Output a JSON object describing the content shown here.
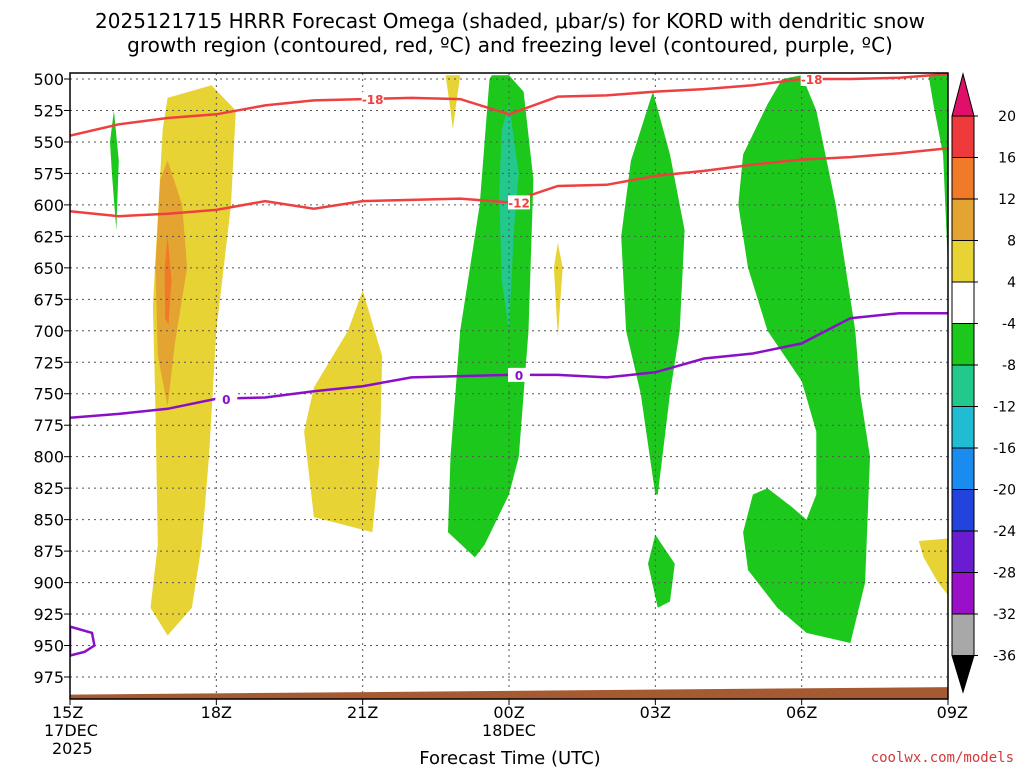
{
  "chart_data": {
    "type": "heatmap",
    "title_line1": "2025121715 HRRR Forecast Omega (shaded, μbar/s) for KORD with dendritic snow",
    "title_line2": "growth region (contoured, red, ºC) and freezing level (contoured, purple, ºC)",
    "xlabel": "Forecast Time (UTC)",
    "credit": "coolwx.com/models",
    "x_range_hours": [
      0,
      18
    ],
    "x_ticks": [
      {
        "hour": 0,
        "label": "15Z",
        "sub1": "17DEC",
        "sub2": "2025"
      },
      {
        "hour": 3,
        "label": "18Z",
        "sub1": "",
        "sub2": ""
      },
      {
        "hour": 6,
        "label": "21Z",
        "sub1": "",
        "sub2": ""
      },
      {
        "hour": 9,
        "label": "00Z",
        "sub1": "18DEC",
        "sub2": ""
      },
      {
        "hour": 12,
        "label": "03Z",
        "sub1": "",
        "sub2": ""
      },
      {
        "hour": 15,
        "label": "06Z",
        "sub1": "",
        "sub2": ""
      },
      {
        "hour": 18,
        "label": "09Z",
        "sub1": "",
        "sub2": ""
      }
    ],
    "y_levels_mb": [
      "500",
      "525",
      "550",
      "575",
      "600",
      "625",
      "650",
      "675",
      "700",
      "725",
      "750",
      "775",
      "800",
      "825",
      "850",
      "875",
      "900",
      "925",
      "950",
      "975"
    ],
    "colorbar": {
      "labels": [
        "20",
        "16",
        "12",
        "8",
        "4",
        "-4",
        "-8",
        "-12",
        "-16",
        "-20",
        "-24",
        "-28",
        "-32",
        "-36"
      ],
      "colors": [
        "#e0106a",
        "#ee3a3a",
        "#f07a28",
        "#e4a432",
        "#e8d334",
        "#ffffff",
        "#1cc81c",
        "#22c88c",
        "#20bcd2",
        "#1a8cf0",
        "#2244dc",
        "#6a1cd2",
        "#9a10c8",
        "#a8a8a8",
        "#000000"
      ]
    },
    "series": [
      {
        "name": "-18C isotherm (red)",
        "label": "-18",
        "color": "#ee4040",
        "x": [
          0,
          1,
          2,
          3,
          4,
          5,
          6,
          7,
          8,
          9,
          10,
          11,
          12,
          13,
          14,
          15,
          16,
          17,
          18
        ],
        "y": [
          545,
          536,
          531,
          528,
          521,
          517,
          516,
          515,
          516,
          528,
          514,
          513,
          510,
          508,
          505,
          500,
          500,
          499,
          496
        ]
      },
      {
        "name": "-12C isotherm (red)",
        "label": "-12",
        "color": "#ee4040",
        "x": [
          0,
          1,
          2,
          3,
          4,
          5,
          6,
          7,
          8,
          9,
          10,
          11,
          12,
          13,
          14,
          15,
          16,
          17,
          18
        ],
        "y": [
          605,
          609,
          607,
          604,
          597,
          603,
          597,
          596,
          595,
          598,
          585,
          584,
          577,
          573,
          568,
          564,
          562,
          559,
          555
        ]
      },
      {
        "name": "0C freezing level (purple)",
        "label": "0",
        "color": "#8a10c8",
        "x": [
          0,
          1,
          2,
          3,
          4,
          5,
          6,
          7,
          8,
          9,
          10,
          11,
          12,
          13,
          14,
          15,
          16,
          17,
          18
        ],
        "y": [
          769,
          766,
          762,
          754,
          753,
          748,
          744,
          737,
          736,
          735,
          735,
          737,
          733,
          722,
          718,
          710,
          690,
          686,
          686
        ]
      }
    ],
    "shaded_regions": [
      {
        "name": "omega +4",
        "color": "#e8d334",
        "pts": [
          [
            2.0,
            515
          ],
          [
            2.9,
            505
          ],
          [
            3.4,
            525
          ],
          [
            3.3,
            600
          ],
          [
            3.0,
            700
          ],
          [
            2.85,
            800
          ],
          [
            2.7,
            870
          ],
          [
            2.5,
            920
          ],
          [
            2.0,
            942
          ],
          [
            1.65,
            920
          ],
          [
            1.8,
            870
          ],
          [
            1.75,
            760
          ],
          [
            1.7,
            680
          ],
          [
            1.9,
            540
          ]
        ]
      },
      {
        "name": "omega +8",
        "color": "#e4a432",
        "pts": [
          [
            2.0,
            565
          ],
          [
            2.3,
            600
          ],
          [
            2.4,
            650
          ],
          [
            2.15,
            710
          ],
          [
            2.0,
            760
          ],
          [
            1.8,
            720
          ],
          [
            1.75,
            650
          ],
          [
            1.85,
            580
          ]
        ]
      },
      {
        "name": "omega +12",
        "color": "#f07a28",
        "pts": [
          [
            2.0,
            625
          ],
          [
            2.08,
            660
          ],
          [
            2.02,
            695
          ],
          [
            1.95,
            690
          ],
          [
            1.94,
            650
          ]
        ]
      },
      {
        "name": "omega +4",
        "color": "#e8d334",
        "pts": [
          [
            6.0,
            668
          ],
          [
            6.4,
            720
          ],
          [
            6.35,
            800
          ],
          [
            6.2,
            860
          ],
          [
            5.7,
            855
          ],
          [
            5.0,
            848
          ],
          [
            4.8,
            780
          ],
          [
            5.0,
            745
          ],
          [
            5.7,
            700
          ]
        ]
      },
      {
        "name": "omega +4",
        "color": "#e8d334",
        "pts": [
          [
            7.7,
            497
          ],
          [
            8.0,
            497
          ],
          [
            7.9,
            525
          ],
          [
            7.85,
            540
          ],
          [
            7.8,
            525
          ]
        ]
      },
      {
        "name": "omega +4",
        "color": "#e8d334",
        "pts": [
          [
            10.0,
            630
          ],
          [
            10.1,
            650
          ],
          [
            10.0,
            705
          ],
          [
            9.92,
            650
          ]
        ]
      },
      {
        "name": "omega +4",
        "color": "#e8d334",
        "pts": [
          [
            17.4,
            867
          ],
          [
            18.0,
            865
          ],
          [
            18.0,
            910
          ],
          [
            17.8,
            900
          ],
          [
            17.5,
            880
          ]
        ]
      },
      {
        "name": "omega -4",
        "color": "#1cc81c",
        "pts": [
          [
            9.0,
            497
          ],
          [
            9.3,
            510
          ],
          [
            9.5,
            580
          ],
          [
            9.4,
            700
          ],
          [
            9.2,
            800
          ],
          [
            9.0,
            830
          ],
          [
            8.5,
            870
          ],
          [
            8.3,
            880
          ],
          [
            7.75,
            860
          ],
          [
            7.8,
            800
          ],
          [
            8.0,
            700
          ],
          [
            8.4,
            600
          ],
          [
            8.6,
            500
          ],
          [
            8.65,
            497
          ]
        ]
      },
      {
        "name": "omega -8",
        "color": "#22c88c",
        "pts": [
          [
            9.0,
            520
          ],
          [
            9.2,
            575
          ],
          [
            9.1,
            620
          ],
          [
            9.0,
            700
          ],
          [
            8.85,
            660
          ],
          [
            8.8,
            590
          ],
          [
            8.85,
            540
          ]
        ]
      },
      {
        "name": "omega -4",
        "color": "#1cc81c",
        "pts": [
          [
            11.95,
            510
          ],
          [
            12.3,
            560
          ],
          [
            12.6,
            620
          ],
          [
            12.5,
            700
          ],
          [
            12.3,
            750
          ],
          [
            12.05,
            830
          ],
          [
            12.0,
            830
          ],
          [
            11.7,
            750
          ],
          [
            11.4,
            700
          ],
          [
            11.3,
            625
          ],
          [
            11.5,
            565
          ]
        ]
      },
      {
        "name": "omega -4",
        "color": "#1cc81c",
        "pts": [
          [
            12.0,
            862
          ],
          [
            12.4,
            885
          ],
          [
            12.3,
            915
          ],
          [
            12.05,
            920
          ],
          [
            11.85,
            885
          ]
        ]
      },
      {
        "name": "omega -4",
        "color": "#1cc81c",
        "pts": [
          [
            15.0,
            497
          ],
          [
            15.3,
            525
          ],
          [
            15.7,
            600
          ],
          [
            15.9,
            650
          ],
          [
            16.1,
            700
          ],
          [
            16.2,
            750
          ],
          [
            16.4,
            800
          ],
          [
            16.3,
            900
          ],
          [
            16.0,
            948
          ],
          [
            15.1,
            940
          ],
          [
            14.5,
            920
          ],
          [
            13.9,
            890
          ],
          [
            13.8,
            860
          ],
          [
            14.0,
            830
          ],
          [
            14.3,
            825
          ],
          [
            14.8,
            840
          ],
          [
            15.1,
            850
          ],
          [
            15.3,
            830
          ],
          [
            15.3,
            780
          ],
          [
            15.0,
            740
          ],
          [
            14.3,
            700
          ],
          [
            13.9,
            650
          ],
          [
            13.7,
            600
          ],
          [
            13.8,
            560
          ],
          [
            14.3,
            520
          ],
          [
            14.6,
            500
          ]
        ]
      },
      {
        "name": "omega -4",
        "color": "#1cc81c",
        "pts": [
          [
            17.6,
            497
          ],
          [
            18.0,
            497
          ],
          [
            18.0,
            650
          ],
          [
            17.9,
            560
          ],
          [
            17.7,
            520
          ]
        ]
      },
      {
        "name": "omega -4",
        "color": "#1cc81c",
        "pts": [
          [
            0.9,
            525
          ],
          [
            1.0,
            565
          ],
          [
            0.95,
            620
          ],
          [
            0.86,
            575
          ],
          [
            0.82,
            550
          ]
        ]
      },
      {
        "name": "0C closed contour",
        "color": "none",
        "stroke": "#8a10c8",
        "pts": [
          [
            0.0,
            935
          ],
          [
            0.45,
            940
          ],
          [
            0.5,
            950
          ],
          [
            0.3,
            955
          ],
          [
            0.0,
            958
          ]
        ]
      }
    ],
    "terrain": {
      "color": "#a65a32",
      "top_mb_start": 989,
      "top_mb_end": 983
    }
  }
}
